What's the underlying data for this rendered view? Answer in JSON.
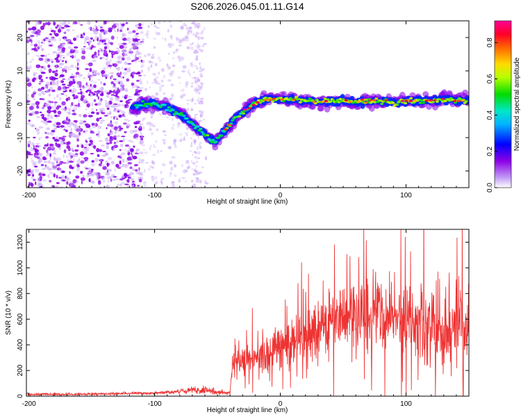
{
  "title": "S206.2026.045.01.11.G14",
  "chart_data": [
    {
      "type": "heatmap",
      "xlabel": "Height of straight line (km)",
      "ylabel": "Frequency (Hz)",
      "xlim": [
        -202,
        150
      ],
      "ylim": [
        -25,
        25
      ],
      "xticks": [
        -200,
        -100,
        0,
        100
      ],
      "yticks": [
        -20,
        -10,
        0,
        10,
        20
      ],
      "grid": false,
      "ridge": {
        "description": "Frequency ridge centre vs height",
        "x": [
          -118,
          -110,
          -100,
          -90,
          -80,
          -70,
          -60,
          -52,
          -47,
          -42,
          -38,
          -32,
          -26,
          -20,
          -10,
          0,
          10,
          20,
          30,
          40,
          50,
          60,
          70,
          80,
          90,
          100,
          110,
          120,
          130,
          140,
          150
        ],
        "y": [
          -1,
          0,
          0,
          -1,
          -3,
          -6,
          -9,
          -11.5,
          -9,
          -7,
          -5,
          -3,
          -1.5,
          0.5,
          1.5,
          1.5,
          1.5,
          1.0,
          0.5,
          1.0,
          1.0,
          0.5,
          1.0,
          1.0,
          0.5,
          1.0,
          1.0,
          1.0,
          1.5,
          1.0,
          1.5
        ]
      },
      "colorbar": {
        "label": "Normalized spectral amplitude",
        "ticks": [
          0.0,
          0.2,
          0.4,
          0.6,
          0.8
        ],
        "range": [
          0.0,
          0.92
        ],
        "colors": [
          "#ffffff",
          "#c39cf6",
          "#8c00e6",
          "#0000ff",
          "#00b4ff",
          "#00e6c8",
          "#00dc00",
          "#b4ff00",
          "#ffdc00",
          "#ff6400",
          "#ff0028",
          "#ff0096"
        ]
      }
    },
    {
      "type": "line",
      "xlabel": "Height of straight line (km)",
      "ylabel": "SNR (10 * v/v)",
      "xlim": [
        -202,
        150
      ],
      "ylim": [
        0,
        1300
      ],
      "xticks": [
        -200,
        -100,
        0,
        100
      ],
      "yticks": [
        0,
        200,
        400,
        600,
        800,
        1000,
        1200
      ],
      "series_color": "#ee3333",
      "envelope": {
        "description": "Approximate mean and spread of the noisy SNR trace",
        "x": [
          -202,
          -150,
          -100,
          -80,
          -70,
          -60,
          -50,
          -40,
          -38,
          -30,
          -20,
          -10,
          0,
          10,
          20,
          30,
          40,
          50,
          60,
          70,
          80,
          90,
          100,
          110,
          120,
          130,
          140,
          150
        ],
        "mean": [
          15,
          15,
          25,
          35,
          50,
          45,
          30,
          25,
          260,
          280,
          300,
          330,
          380,
          420,
          470,
          520,
          570,
          600,
          620,
          620,
          630,
          610,
          590,
          560,
          560,
          560,
          550,
          560
        ],
        "spread": [
          12,
          12,
          15,
          22,
          40,
          40,
          25,
          15,
          120,
          150,
          170,
          200,
          230,
          250,
          270,
          290,
          300,
          310,
          330,
          340,
          360,
          360,
          370,
          380,
          400,
          420,
          430,
          440
        ]
      }
    }
  ]
}
